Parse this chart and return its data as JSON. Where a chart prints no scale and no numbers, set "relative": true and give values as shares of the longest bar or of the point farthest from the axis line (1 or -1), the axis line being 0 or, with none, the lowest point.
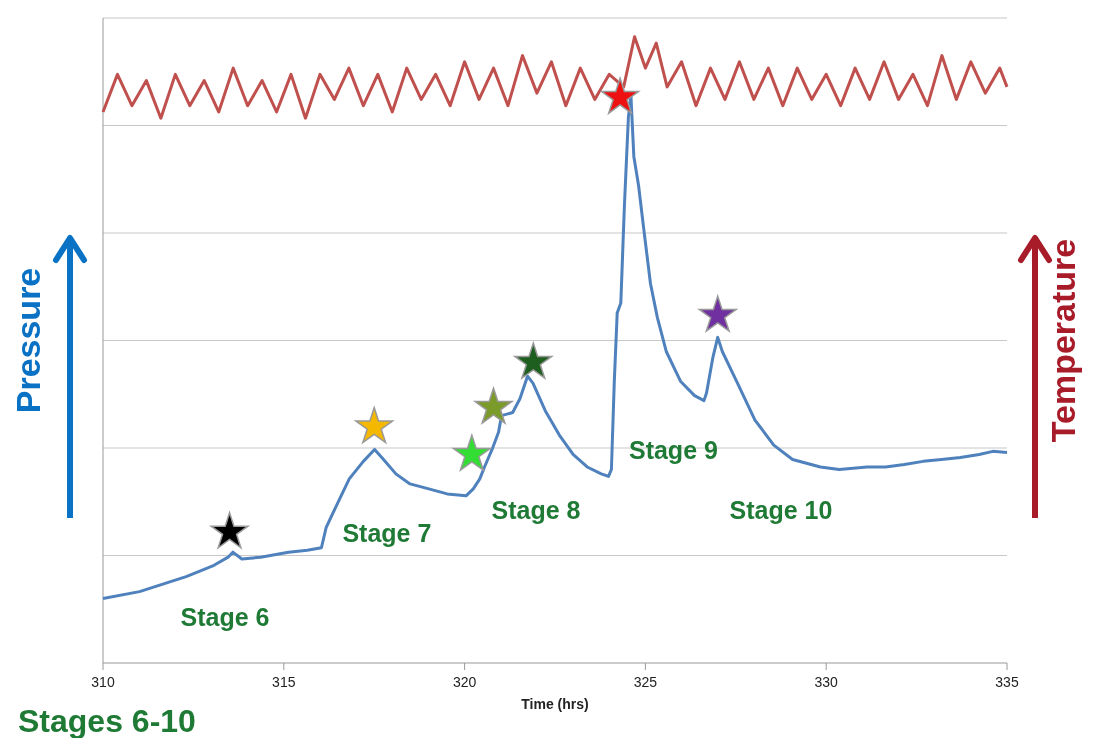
{
  "chart_data": {
    "type": "line",
    "title": "Stages 6-10",
    "xlabel": "Time (hrs)",
    "ylabel": "Pressure",
    "y2label": "Temperature",
    "relative": true,
    "grid": "y",
    "tick_labels": "x",
    "marker": "none",
    "line_style": "solid",
    "xlim": [
      310,
      335
    ],
    "xticks": [
      310,
      315,
      320,
      325,
      330,
      335
    ],
    "annotations": [
      "Stage 6",
      "Stage 7",
      "Stage 8",
      "Stage 9",
      "Stage 10"
    ],
    "series": [
      {
        "color": "#c0504d",
        "x": [
          310.0,
          310.4,
          310.8,
          311.2,
          311.6,
          312.0,
          312.4,
          312.8,
          313.2,
          313.6,
          314.0,
          314.4,
          314.8,
          315.2,
          315.6,
          316.0,
          316.4,
          316.8,
          317.2,
          317.6,
          318.0,
          318.4,
          318.8,
          319.2,
          319.6,
          320.0,
          320.4,
          320.8,
          321.2,
          321.6,
          322.0,
          322.4,
          322.8,
          323.2,
          323.6,
          324.0,
          324.4,
          324.7,
          325.0,
          325.3,
          325.6,
          326.0,
          326.4,
          326.8,
          327.2,
          327.6,
          328.0,
          328.4,
          328.8,
          329.2,
          329.6,
          330.0,
          330.4,
          330.8,
          331.2,
          331.6,
          332.0,
          332.4,
          332.8,
          333.2,
          333.6,
          334.0,
          334.4,
          334.8,
          335.0
        ],
        "values": [
          0.88,
          0.94,
          0.89,
          0.93,
          0.87,
          0.94,
          0.89,
          0.93,
          0.88,
          0.95,
          0.89,
          0.93,
          0.88,
          0.94,
          0.87,
          0.94,
          0.9,
          0.95,
          0.89,
          0.94,
          0.88,
          0.95,
          0.9,
          0.94,
          0.89,
          0.96,
          0.9,
          0.95,
          0.89,
          0.97,
          0.91,
          0.96,
          0.89,
          0.95,
          0.9,
          0.94,
          0.92,
          1.0,
          0.95,
          0.99,
          0.92,
          0.96,
          0.89,
          0.95,
          0.9,
          0.96,
          0.9,
          0.95,
          0.89,
          0.95,
          0.9,
          0.94,
          0.89,
          0.95,
          0.9,
          0.96,
          0.9,
          0.94,
          0.89,
          0.97,
          0.9,
          0.96,
          0.91,
          0.95,
          0.92
        ]
      },
      {
        "color": "#4f81bd",
        "x": [
          310.0,
          311.01,
          312.3,
          313.07,
          313.46,
          313.59,
          313.84,
          314.36,
          315.13,
          315.65,
          316.04,
          316.17,
          316.42,
          316.81,
          317.2,
          317.51,
          317.71,
          318.1,
          318.49,
          319.01,
          319.52,
          320.04,
          320.24,
          320.42,
          320.55,
          320.76,
          320.94,
          321.02,
          321.33,
          321.53,
          321.74,
          321.89,
          322.23,
          322.62,
          323.0,
          323.39,
          323.78,
          323.98,
          324.06,
          324.14,
          324.22,
          324.32,
          324.42,
          324.53,
          324.6,
          324.68,
          324.81,
          324.94,
          325.14,
          325.33,
          325.58,
          325.97,
          326.36,
          326.62,
          326.69,
          326.87,
          327.0,
          327.13,
          327.52,
          328.03,
          328.55,
          329.07,
          329.84,
          330.36,
          331.13,
          331.64,
          332.16,
          332.68,
          333.19,
          333.71,
          334.23,
          334.61,
          335.0
        ],
        "values": [
          0.103,
          0.114,
          0.138,
          0.156,
          0.169,
          0.177,
          0.166,
          0.169,
          0.177,
          0.18,
          0.184,
          0.216,
          0.247,
          0.294,
          0.322,
          0.341,
          0.328,
          0.302,
          0.286,
          0.278,
          0.27,
          0.267,
          0.278,
          0.294,
          0.313,
          0.341,
          0.369,
          0.395,
          0.4,
          0.422,
          0.458,
          0.447,
          0.403,
          0.364,
          0.333,
          0.313,
          0.302,
          0.298,
          0.309,
          0.45,
          0.559,
          0.575,
          0.731,
          0.872,
          0.906,
          0.809,
          0.763,
          0.7,
          0.606,
          0.552,
          0.497,
          0.45,
          0.427,
          0.419,
          0.431,
          0.489,
          0.52,
          0.497,
          0.45,
          0.388,
          0.348,
          0.325,
          0.313,
          0.309,
          0.313,
          0.313,
          0.317,
          0.322,
          0.325,
          0.328,
          0.333,
          0.338,
          0.336
        ]
      },
      {
        "type": "scatter",
        "marker": "star",
        "x": [
          313.5,
          317.5,
          320.2,
          320.8,
          321.9,
          324.3,
          327.0
        ],
        "values": [
          0.209,
          0.377,
          0.333,
          0.408,
          0.48,
          0.903,
          0.555
        ],
        "colors": [
          "#000000",
          "#f5b800",
          "#33dd33",
          "#7a9a2a",
          "#1e5e1e",
          "#ee1111",
          "#7030a0"
        ]
      }
    ]
  }
}
